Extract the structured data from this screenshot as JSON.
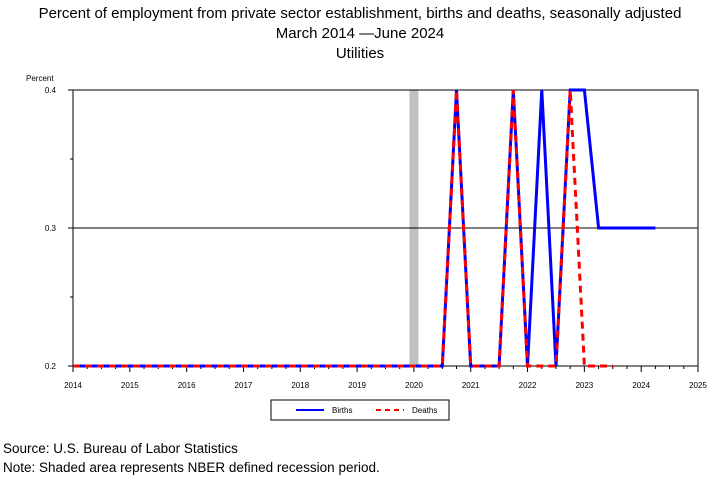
{
  "header": {
    "title": "Percent of employment from private sector establishment, births and deaths, seasonally adjusted",
    "subtitle_start": "March 2014",
    "subtitle_end": "June 2024",
    "subtitle_dash": "—",
    "series_name": "Utilities"
  },
  "footer": {
    "source": "Source: U.S. Bureau of Labor Statistics",
    "note": "Note: Shaded area represents NBER defined recession period."
  },
  "chart_data": {
    "type": "line",
    "ylabel": "Percent",
    "ylim": [
      0.2,
      0.4
    ],
    "yticks": [
      "0.2",
      "0.3",
      "0.4"
    ],
    "xlim": [
      2014,
      2025
    ],
    "xticks": [
      "2014",
      "2015",
      "2016",
      "2017",
      "2018",
      "2019",
      "2020",
      "2021",
      "2022",
      "2023",
      "2024",
      "2025"
    ],
    "grid": "horizontal at major ticks",
    "recession": {
      "start": 2019.92,
      "end": 2020.08,
      "color": "#c0c0c0"
    },
    "legend_position": "bottom-center",
    "series": [
      {
        "name": "Births",
        "color": "#0000ff",
        "style": "solid",
        "points": [
          [
            2014.0,
            0.2
          ],
          [
            2020.5,
            0.2
          ],
          [
            2020.75,
            0.4
          ],
          [
            2021.0,
            0.2
          ],
          [
            2021.5,
            0.2
          ],
          [
            2021.75,
            0.4
          ],
          [
            2022.0,
            0.2
          ],
          [
            2022.25,
            0.4
          ],
          [
            2022.5,
            0.2
          ],
          [
            2022.75,
            0.4
          ],
          [
            2023.0,
            0.4
          ],
          [
            2023.25,
            0.3
          ],
          [
            2024.25,
            0.3
          ]
        ]
      },
      {
        "name": "Deaths",
        "color": "#ff0000",
        "style": "dashed",
        "points": [
          [
            2014.0,
            0.2
          ],
          [
            2020.5,
            0.2
          ],
          [
            2020.75,
            0.4
          ],
          [
            2021.0,
            0.2
          ],
          [
            2021.5,
            0.2
          ],
          [
            2021.75,
            0.4
          ],
          [
            2022.0,
            0.2
          ],
          [
            2022.5,
            0.2
          ],
          [
            2022.75,
            0.4
          ],
          [
            2023.0,
            0.2
          ],
          [
            2023.5,
            0.2
          ]
        ]
      }
    ]
  }
}
